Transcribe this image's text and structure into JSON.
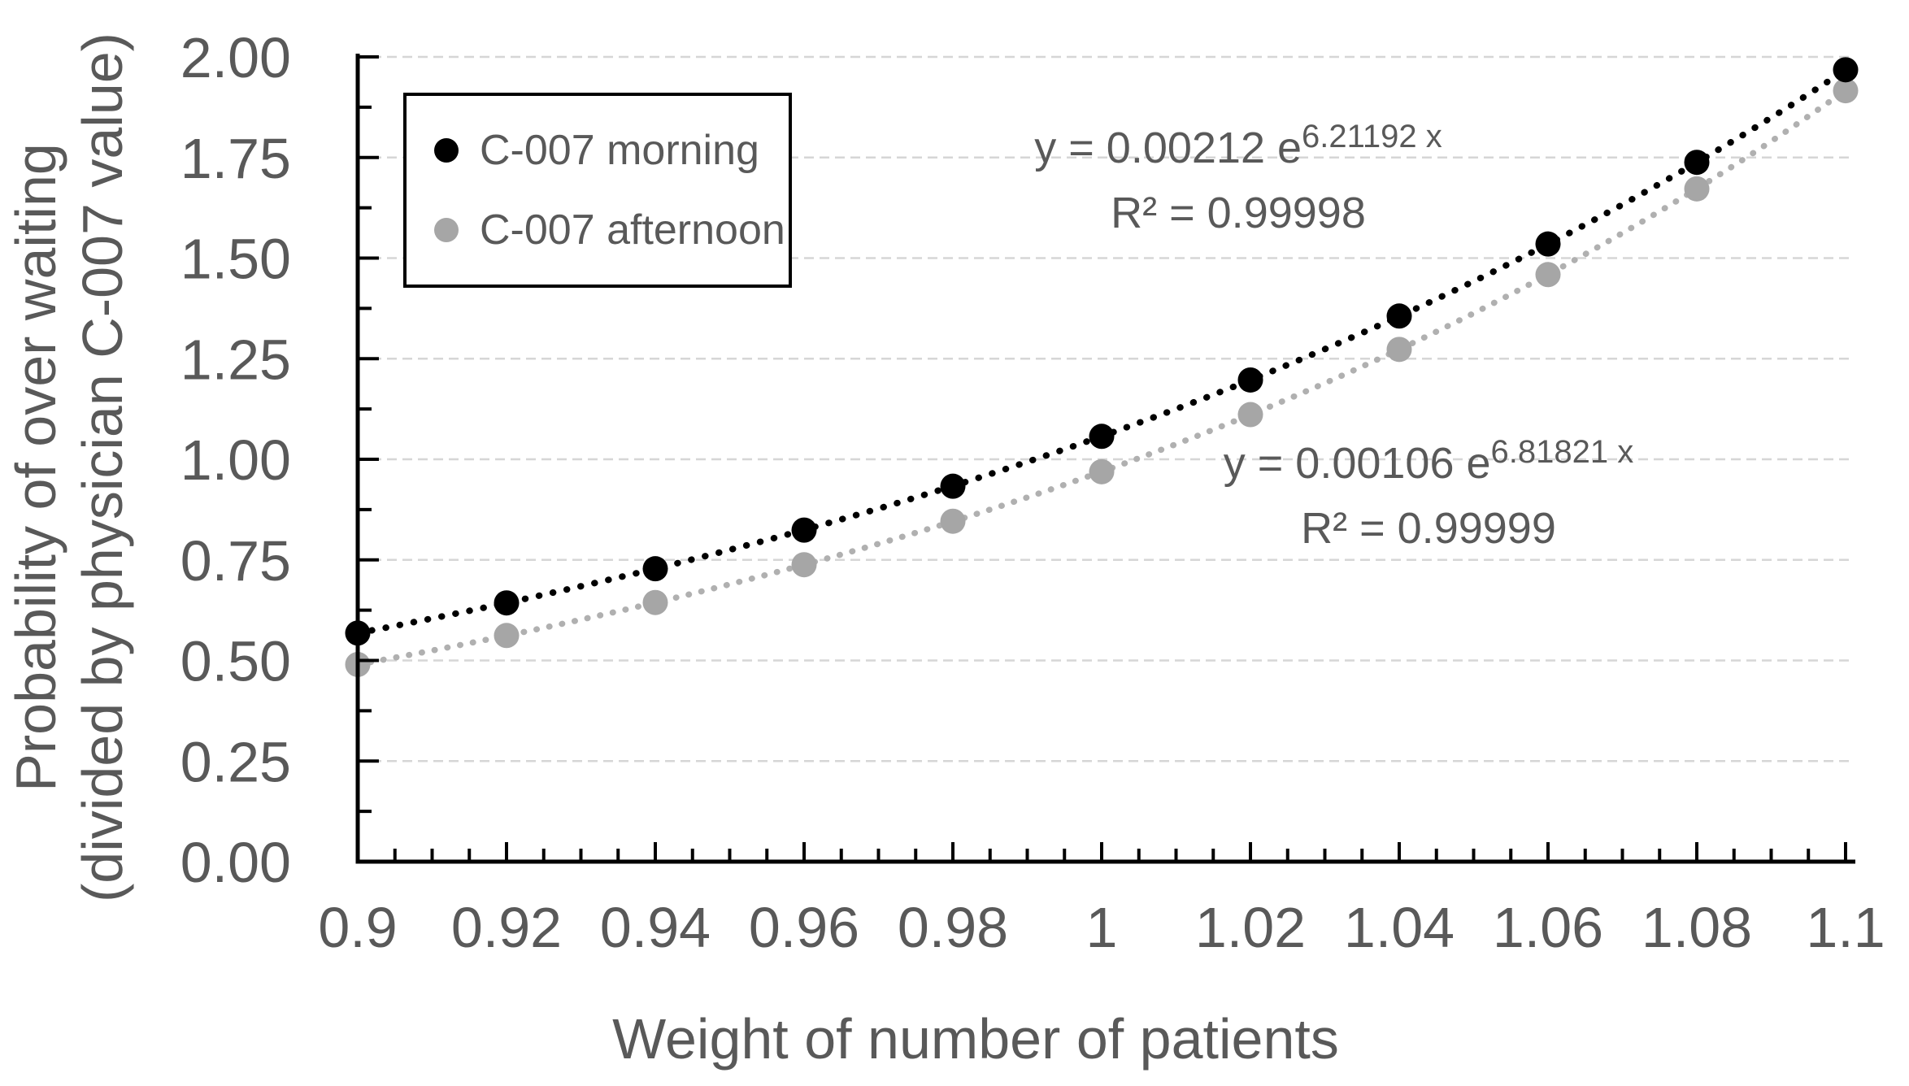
{
  "chart_data": {
    "type": "scatter",
    "x_axis": {
      "title": "Weight of number of patients",
      "min": 0.9,
      "max": 1.1,
      "major_step": 0.02,
      "minor_step": 0.005,
      "tick_labels": [
        "0.9",
        "0.92",
        "0.94",
        "0.96",
        "0.98",
        "1",
        "1.02",
        "1.04",
        "1.06",
        "1.08",
        "1.1"
      ]
    },
    "y_axis": {
      "title_line1": "Probability of over waiting",
      "title_line2": "(divided by physician C-007 value)",
      "min": 0.0,
      "max": 2.0,
      "major_step": 0.25,
      "minor_step": 0.125,
      "tick_labels": [
        "0.00",
        "0.25",
        "0.50",
        "0.75",
        "1.00",
        "1.25",
        "1.50",
        "1.75",
        "2.00"
      ]
    },
    "grid": "horizontal",
    "legend_position": "top-left-inside",
    "categories_x": [
      0.9,
      0.92,
      0.94,
      0.96,
      0.98,
      1.0,
      1.02,
      1.04,
      1.06,
      1.08,
      1.1
    ],
    "series": [
      {
        "name": "C-007 morning",
        "marker": "circle",
        "color": "#000000",
        "values": [
          0.568,
          0.643,
          0.728,
          0.824,
          0.933,
          1.057,
          1.197,
          1.356,
          1.535,
          1.738,
          1.968
        ],
        "trendline": {
          "type": "exponential",
          "a": 0.00212,
          "b": 6.21192,
          "r2": 0.99998,
          "color": "#000000"
        }
      },
      {
        "name": "C-007 afternoon",
        "marker": "circle",
        "color": "#a6a6a6",
        "values": [
          0.49,
          0.562,
          0.644,
          0.738,
          0.846,
          0.969,
          1.111,
          1.273,
          1.459,
          1.672,
          1.916
        ],
        "trendline": {
          "type": "exponential",
          "a": 0.00106,
          "b": 6.81821,
          "r2": 0.99999,
          "color": "#b0b0b0"
        }
      }
    ],
    "annotations": [
      {
        "series": "C-007 morning",
        "equation_base": "y = 0.00212 e",
        "equation_exponent": "6.21192 x",
        "r_squared": "R² = 0.99998"
      },
      {
        "series": "C-007 afternoon",
        "equation_base": "y = 0.00106 e",
        "equation_exponent": "6.81821 x",
        "r_squared": "R² = 0.99999"
      }
    ]
  },
  "legend": {
    "items": [
      {
        "label": "C-007 morning",
        "color": "#000000"
      },
      {
        "label": "C-007 afternoon",
        "color": "#a6a6a6"
      }
    ]
  },
  "colors": {
    "text": "#595959",
    "grid": "#d6d6d6",
    "axis": "#000000",
    "background": "#ffffff"
  }
}
